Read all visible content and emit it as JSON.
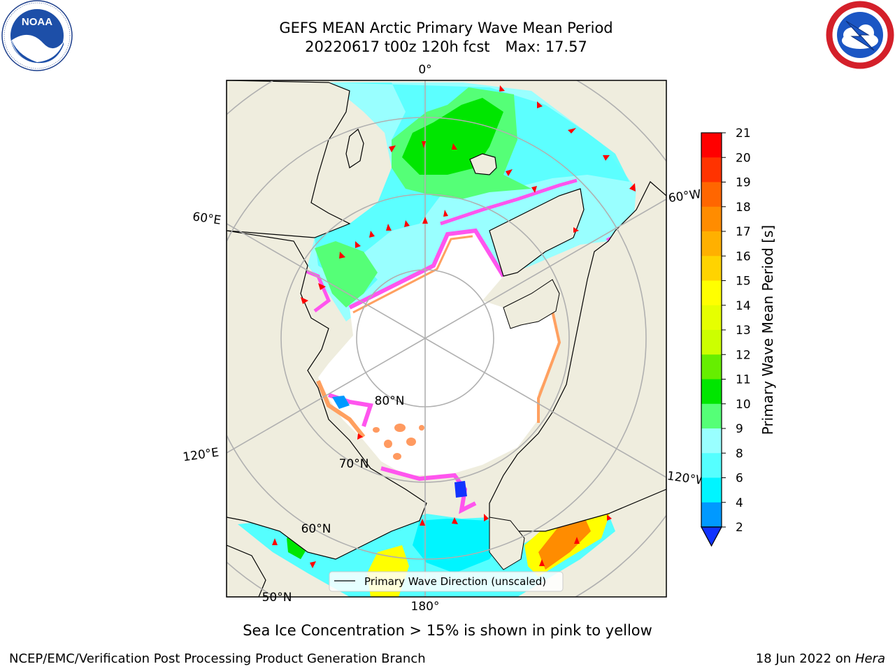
{
  "title": {
    "line1": "GEFS MEAN Arctic Primary Wave Mean Period",
    "line2_run": "20220617 t00z 120h fcst",
    "line2_max": "Max: 17.57"
  },
  "map": {
    "meridian_labels": {
      "lon_0": "0°",
      "lon_60e": "60°E",
      "lon_120e": "120°E",
      "lon_180": "180°",
      "lon_120w": "120°W",
      "lon_60w": "60°W"
    },
    "parallel_labels": {
      "lat_80n": "80°N",
      "lat_70n": "70°N",
      "lat_60n": "60°N",
      "lat_50n": "50°N"
    },
    "legend_label": "Primary Wave Direction (unscaled)",
    "colors": {
      "land": "#efedde",
      "ocean_no_data": "#ffffff",
      "arrows": "#ff0000"
    }
  },
  "colorbar": {
    "label": "Primary Wave Mean Period [s]",
    "ticks": [
      "21",
      "20",
      "19",
      "18",
      "17",
      "16",
      "15",
      "14",
      "13",
      "12",
      "11",
      "10",
      "9",
      "8",
      "6",
      "4",
      "2"
    ],
    "colors": [
      "#ff0000",
      "#ff3300",
      "#ff6600",
      "#ff8c00",
      "#ffb000",
      "#ffd300",
      "#ffff00",
      "#e6ff00",
      "#ccff00",
      "#66ee00",
      "#00e600",
      "#55ff77",
      "#99ffff",
      "#55ffff",
      "#00f5ff",
      "#0099ff",
      "#1133ff"
    ]
  },
  "note": "Sea Ice Concentration > 15% is shown in pink to yellow",
  "footer": {
    "org": "NCEP/EMC/Verification Post Processing Product Generation Branch",
    "date": "18 Jun 2022 on",
    "host": "Hera"
  }
}
